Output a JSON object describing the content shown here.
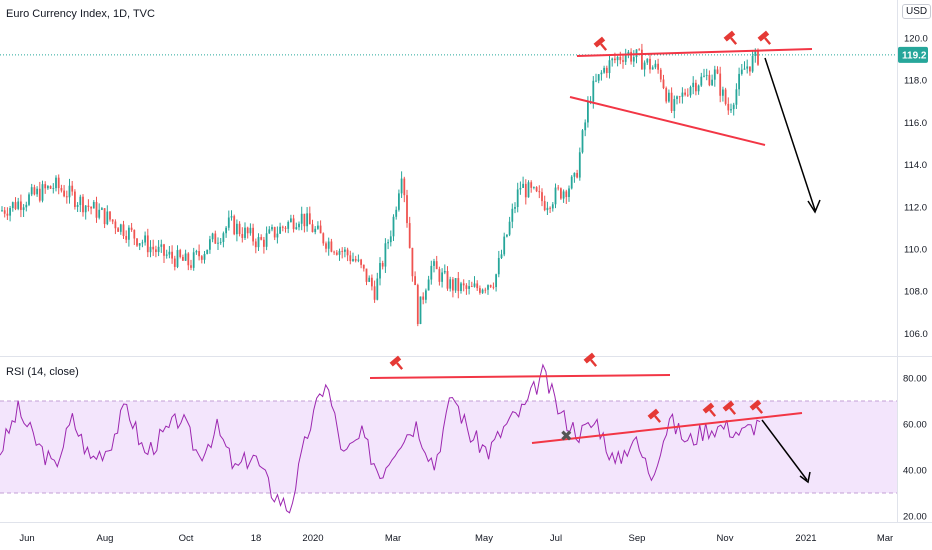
{
  "header": {
    "title": "Euro Currency Index, 1D, TVC",
    "currency": "USD"
  },
  "chart_data": [
    {
      "type": "candlestick",
      "title": "Euro Currency Index, 1D, TVC",
      "ylim": [
        105,
        121.5
      ],
      "y_ticks": [
        "120.0",
        "118.0",
        "116.0",
        "114.0",
        "112.0",
        "110.0",
        "108.0",
        "106.0"
      ],
      "last_price": "119.2",
      "colors": {
        "up": "#26a69a",
        "down": "#ef5350",
        "trendline": "#f23645",
        "arrow": "#000000",
        "price_line": "#26a69a"
      },
      "x_tick_labels": [
        "Jun",
        "Aug",
        "Oct",
        "18",
        "2020",
        "Mar",
        "May",
        "Jul",
        "Sep",
        "Nov",
        "2021",
        "Mar"
      ],
      "series": [
        {
          "x": "Jun 2019",
          "close": 111.8
        },
        {
          "x": "Jul 2019",
          "close": 113.0
        },
        {
          "x": "Aug 2019",
          "close": 111.4
        },
        {
          "x": "Sep 2019",
          "close": 109.8
        },
        {
          "x": "Oct 2019",
          "close": 110.4
        },
        {
          "x": "Nov 2019",
          "close": 110.0
        },
        {
          "x": "Dec 2019",
          "close": 111.3
        },
        {
          "x": "Jan 2020",
          "close": 110.6
        },
        {
          "x": "Feb 2020",
          "close": 108.0
        },
        {
          "x": "Mar 2020",
          "close": 113.9
        },
        {
          "x": "Mar 2020",
          "close": 106.6
        },
        {
          "x": "Apr 2020",
          "close": 108.2
        },
        {
          "x": "May 2020",
          "close": 108.6
        },
        {
          "x": "Jun 2020",
          "close": 112.6
        },
        {
          "x": "Jul 2020",
          "close": 117.3
        },
        {
          "x": "Aug 2020",
          "close": 119.4
        },
        {
          "x": "Sep 2020",
          "close": 118.0
        },
        {
          "x": "Oct 2020",
          "close": 118.5
        },
        {
          "x": "Nov 2020",
          "close": 119.2
        }
      ]
    },
    {
      "type": "line",
      "title": "RSI (14, close)",
      "ylim": [
        18,
        88
      ],
      "y_ticks": [
        "80.00",
        "60.00",
        "40.00",
        "20.00"
      ],
      "band": [
        30,
        70
      ],
      "colors": {
        "line": "#9c27b0",
        "band": "#f3e5fc",
        "trendline": "#f23645"
      },
      "values_sampled": [
        48,
        66,
        52,
        41,
        62,
        45,
        50,
        68,
        47,
        55,
        63,
        46,
        58,
        40,
        47,
        31,
        23,
        56,
        79,
        46,
        55,
        38,
        52,
        60,
        42,
        73,
        55,
        48,
        60,
        67,
        82,
        64,
        56,
        61,
        42,
        54,
        38,
        62,
        52,
        58,
        59,
        56,
        61
      ]
    }
  ]
}
